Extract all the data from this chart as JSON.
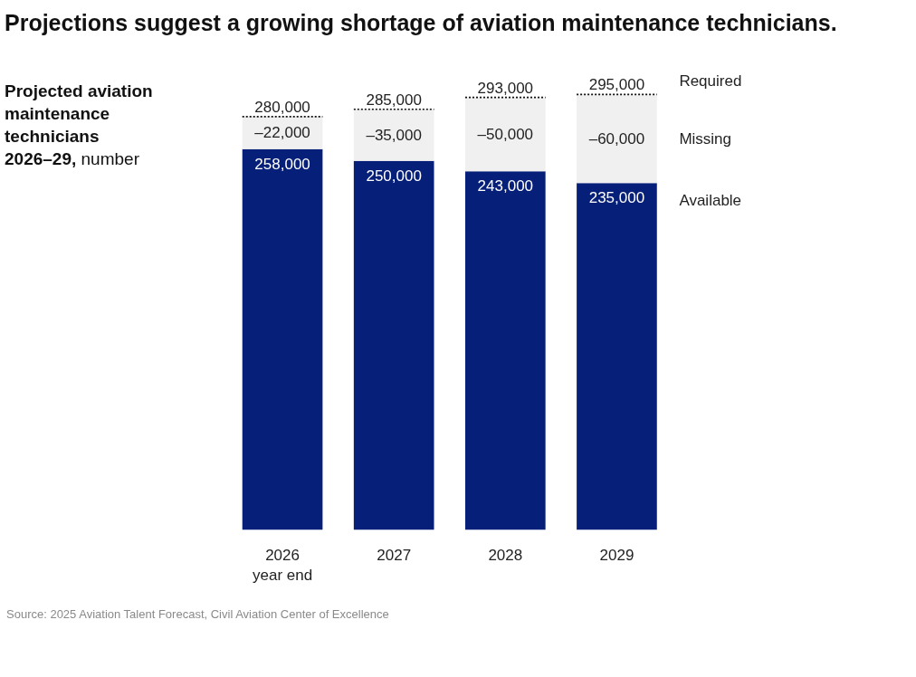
{
  "chart_data": {
    "type": "bar",
    "title": "Projections suggest a growing shortage of aviation maintenance technicians.",
    "subtitle": "Projected aviation maintenance technicians 2026–29, number",
    "categories": [
      "2026\nyear end",
      "2027",
      "2028",
      "2029"
    ],
    "stacked": true,
    "series": [
      {
        "name": "Available",
        "color": "#061f78",
        "values": [
          258000,
          250000,
          243000,
          235000
        ],
        "value_labels": [
          "258,000",
          "250,000",
          "243,000",
          "235,000"
        ]
      },
      {
        "name": "Missing",
        "color": "#f0f0f0",
        "values": [
          22000,
          35000,
          50000,
          60000
        ]
      }
    ],
    "totals": [
      "280,000",
      "285,000",
      "293,000",
      "295,000"
    ],
    "tick_labels": "x",
    "annotations": [
      "–22,000",
      "–35,000",
      "–50,000",
      "–60,000",
      "Required",
      "Source: 2025 Aviation Talent Forecast, Civil Aviation Center of Excellence"
    ]
  }
}
